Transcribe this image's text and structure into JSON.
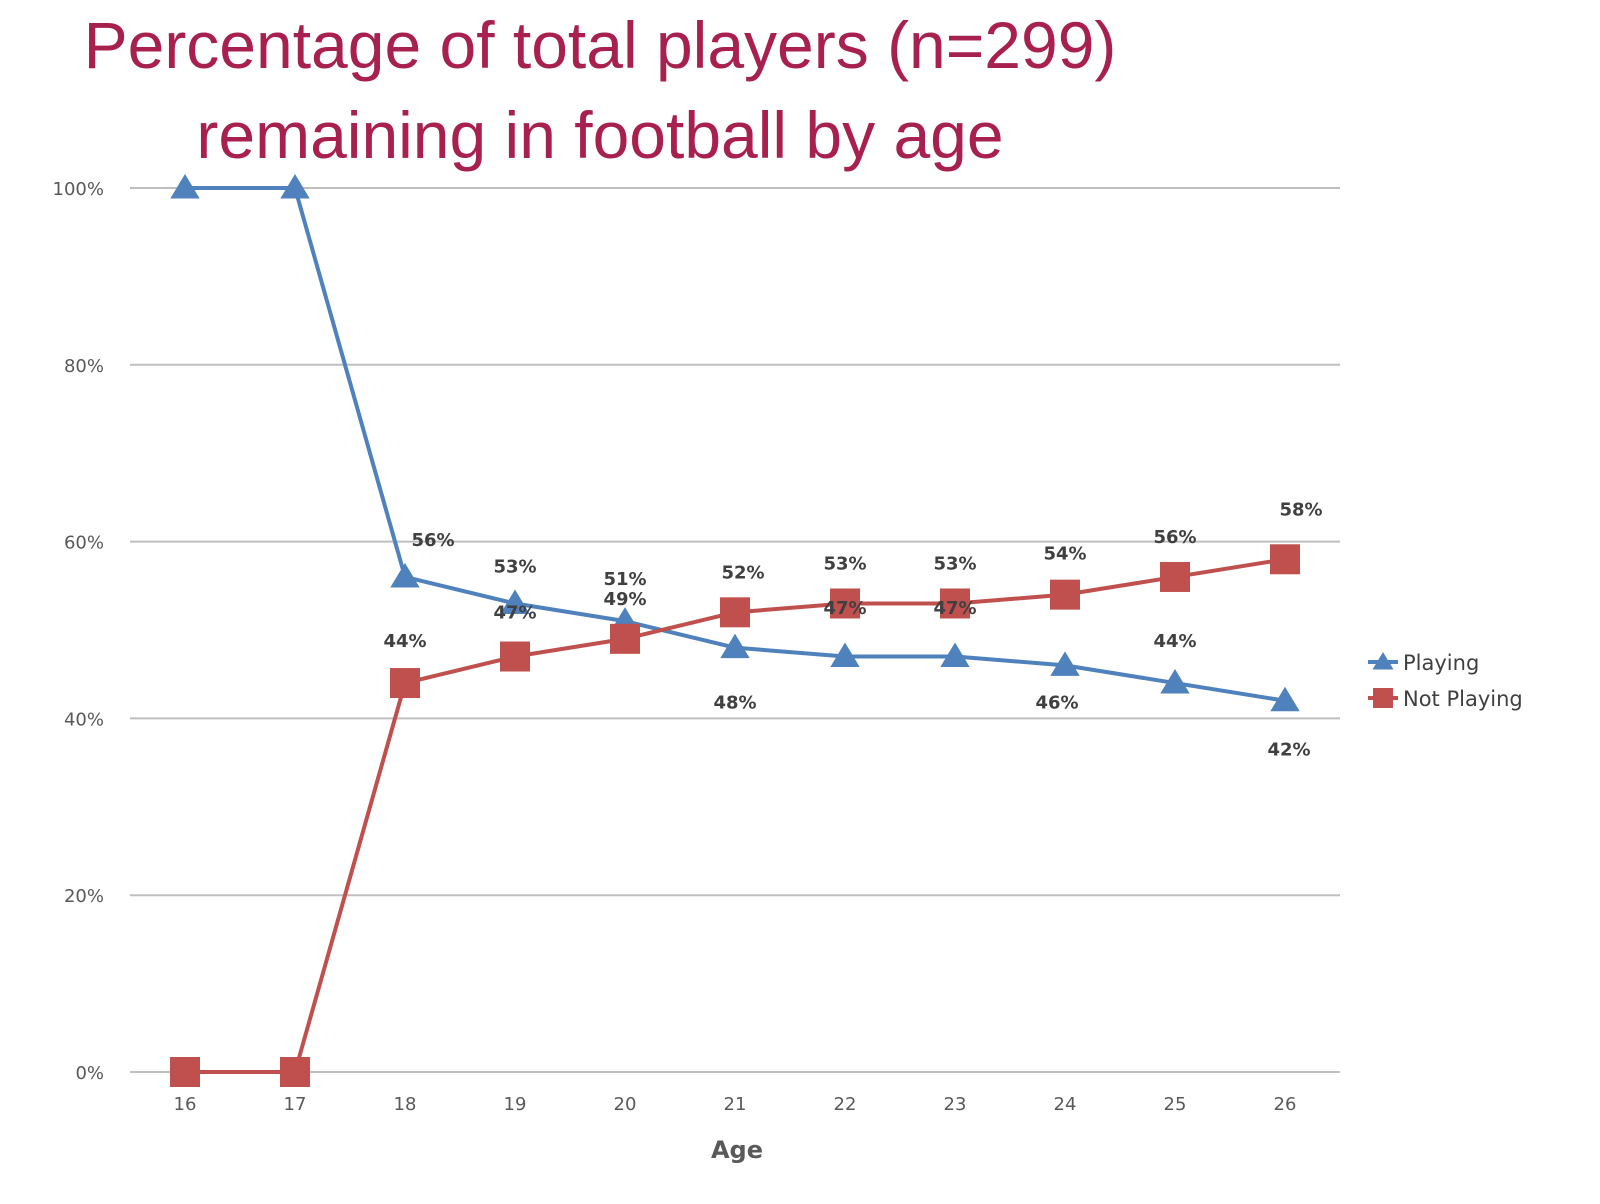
{
  "chart_data": {
    "type": "line",
    "title_lines": [
      "Percentage of total players (n=299)",
      "remaining in football by age"
    ],
    "xlabel": "Age",
    "ylabel": "",
    "categories": [
      "16",
      "17",
      "18",
      "19",
      "20",
      "21",
      "22",
      "23",
      "24",
      "25",
      "26"
    ],
    "y_ticks": [
      "0%",
      "20%",
      "40%",
      "60%",
      "80%",
      "100%"
    ],
    "ylim": [
      0,
      100
    ],
    "grid": true,
    "legend_position": "right",
    "series": [
      {
        "name": "Playing",
        "marker": "triangle",
        "color": "#4f81bd",
        "values": [
          100,
          100,
          56,
          53,
          51,
          48,
          47,
          47,
          46,
          44,
          42
        ],
        "labels": [
          "",
          "",
          "56%",
          "53%",
          "51%",
          "48%",
          "",
          "",
          "46%",
          "44%",
          "42%"
        ]
      },
      {
        "name": "Not Playing",
        "marker": "square",
        "color": "#c0504d",
        "values": [
          0,
          0,
          44,
          47,
          49,
          52,
          53,
          53,
          54,
          56,
          58
        ],
        "labels": [
          "",
          "",
          "44%",
          "47%",
          "49%",
          "52%",
          "53%",
          "53%",
          "54%",
          "56%",
          "58%"
        ]
      }
    ],
    "extra_labels": [
      "47%",
      "47%"
    ]
  }
}
